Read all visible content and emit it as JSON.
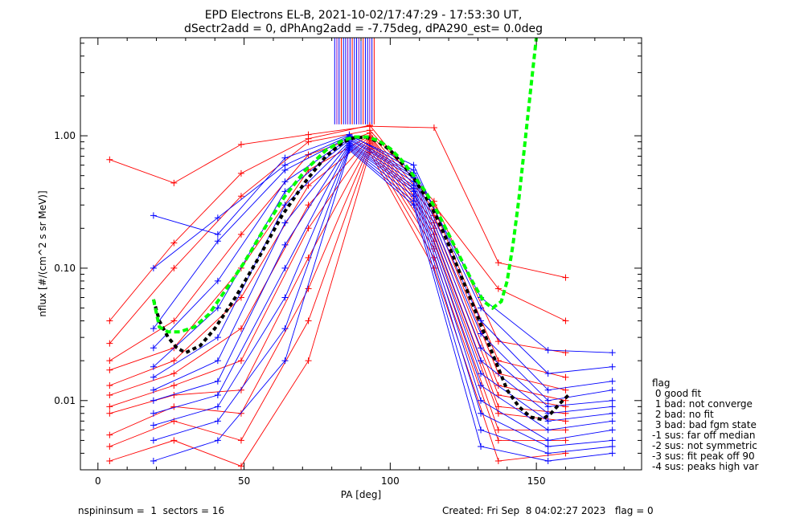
{
  "figure": {
    "title_line1": "EPD Electrons EL-B, 2021-10-02/17:47:29 - 17:53:30 UT,",
    "title_line2": "dSectr2add = 0, dPhAng2add = -7.75deg, dPA290_est=   0.0deg",
    "footer_left": "nspininsum =  1  sectors = 16",
    "footer_right": "Created: Fri Sep  8 04:02:27 2023   flag = 0",
    "legend": {
      "title": "flag",
      "entries": [
        " 0 good fit",
        " 1 bad: not converge",
        " 2 bad: no fit",
        " 3 bad: bad fgm state",
        "-1 sus: far off median",
        "-2 sus: not symmetric",
        "-3 sus: fit peak off 90",
        "-4 sus: peaks high var"
      ]
    }
  },
  "colors": {
    "red": "#ff0000",
    "blue": "#0000ff",
    "fit": "#00ff00",
    "median": "#000000",
    "axes": "#000000"
  },
  "chart_data": {
    "type": "line",
    "xlabel": "PA [deg]",
    "ylabel": "nflux [#/(cm^2 s sr MeV)]",
    "xlim": [
      -6,
      186
    ],
    "ylim": [
      0.003,
      5.5
    ],
    "yscale": "log",
    "xticks": [
      0,
      50,
      100,
      150
    ],
    "xtick_labels": [
      "0",
      "50",
      "100",
      "150"
    ],
    "yticks": [
      0.01,
      0.1,
      1.0
    ],
    "ytick_labels": [
      "0.01",
      "0.10",
      "1.00"
    ],
    "grid": false,
    "series": [
      {
        "color": "red",
        "x": [
          4,
          26,
          49,
          72,
          93,
          115,
          137,
          160
        ],
        "y": [
          0.66,
          0.44,
          0.86,
          1.02,
          1.18,
          1.15,
          0.11,
          0.085
        ]
      },
      {
        "color": "red",
        "x": [
          4,
          26,
          49,
          72,
          93,
          115,
          137,
          160
        ],
        "y": [
          0.04,
          0.155,
          0.52,
          0.95,
          1.2,
          0.3,
          0.07,
          0.04
        ]
      },
      {
        "color": "red",
        "x": [
          4,
          26,
          49,
          72,
          93,
          115,
          137,
          160
        ],
        "y": [
          0.027,
          0.1,
          0.35,
          0.9,
          1.1,
          0.32,
          0.028,
          0.023
        ]
      },
      {
        "color": "red",
        "x": [
          4,
          26,
          49,
          72,
          93,
          115,
          137,
          160
        ],
        "y": [
          0.02,
          0.04,
          0.18,
          0.72,
          1.05,
          0.28,
          0.02,
          0.015
        ]
      },
      {
        "color": "red",
        "x": [
          4,
          26,
          49,
          72,
          93,
          115,
          137,
          160
        ],
        "y": [
          0.017,
          0.025,
          0.1,
          0.55,
          1.0,
          0.25,
          0.016,
          0.012
        ]
      },
      {
        "color": "red",
        "x": [
          4,
          26,
          49,
          72,
          93,
          115,
          137,
          160
        ],
        "y": [
          0.013,
          0.02,
          0.06,
          0.42,
          0.98,
          0.22,
          0.013,
          0.01
        ]
      },
      {
        "color": "red",
        "x": [
          4,
          26,
          49,
          72,
          93,
          115,
          137,
          160
        ],
        "y": [
          0.011,
          0.016,
          0.035,
          0.3,
          0.95,
          0.2,
          0.011,
          0.009
        ]
      },
      {
        "color": "red",
        "x": [
          4,
          26,
          49,
          72,
          93,
          115,
          137,
          160
        ],
        "y": [
          0.009,
          0.013,
          0.02,
          0.2,
          0.92,
          0.18,
          0.009,
          0.008
        ]
      },
      {
        "color": "red",
        "x": [
          4,
          26,
          49,
          72,
          93,
          115,
          137,
          160
        ],
        "y": [
          0.008,
          0.011,
          0.012,
          0.12,
          0.88,
          0.16,
          0.008,
          0.007
        ]
      },
      {
        "color": "red",
        "x": [
          4,
          26,
          49,
          72,
          93,
          115,
          137,
          160
        ],
        "y": [
          0.0055,
          0.009,
          0.008,
          0.07,
          0.85,
          0.14,
          0.006,
          0.006
        ]
      },
      {
        "color": "red",
        "x": [
          4,
          26,
          49,
          72,
          93,
          115,
          137,
          160
        ],
        "y": [
          0.0045,
          0.007,
          0.005,
          0.04,
          0.8,
          0.12,
          0.005,
          0.005
        ]
      },
      {
        "color": "red",
        "x": [
          4,
          26,
          49,
          72,
          93,
          115,
          137,
          160
        ],
        "y": [
          0.0035,
          0.005,
          0.0032,
          0.02,
          0.75,
          0.1,
          0.0035,
          0.004
        ]
      },
      {
        "color": "blue",
        "x": [
          19,
          41,
          64,
          86,
          108,
          131,
          154,
          176
        ],
        "y": [
          0.25,
          0.18,
          0.68,
          1.02,
          0.55,
          0.06,
          0.024,
          0.023
        ]
      },
      {
        "color": "blue",
        "x": [
          19,
          41,
          64,
          86,
          108,
          131,
          154,
          176
        ],
        "y": [
          0.1,
          0.24,
          0.6,
          1.0,
          0.6,
          0.05,
          0.016,
          0.018
        ]
      },
      {
        "color": "blue",
        "x": [
          19,
          41,
          64,
          86,
          108,
          131,
          154,
          176
        ],
        "y": [
          0.035,
          0.16,
          0.55,
          0.98,
          0.52,
          0.04,
          0.012,
          0.014
        ]
      },
      {
        "color": "blue",
        "x": [
          19,
          41,
          64,
          86,
          108,
          131,
          154,
          176
        ],
        "y": [
          0.025,
          0.08,
          0.45,
          0.95,
          0.5,
          0.032,
          0.01,
          0.012
        ]
      },
      {
        "color": "blue",
        "x": [
          19,
          41,
          64,
          86,
          108,
          131,
          154,
          176
        ],
        "y": [
          0.018,
          0.05,
          0.38,
          0.93,
          0.48,
          0.025,
          0.009,
          0.01
        ]
      },
      {
        "color": "blue",
        "x": [
          19,
          41,
          64,
          86,
          108,
          131,
          154,
          176
        ],
        "y": [
          0.015,
          0.03,
          0.3,
          0.9,
          0.45,
          0.02,
          0.008,
          0.009
        ]
      },
      {
        "color": "blue",
        "x": [
          19,
          41,
          64,
          86,
          108,
          131,
          154,
          176
        ],
        "y": [
          0.012,
          0.02,
          0.22,
          0.88,
          0.42,
          0.016,
          0.007,
          0.008
        ]
      },
      {
        "color": "blue",
        "x": [
          19,
          41,
          64,
          86,
          108,
          131,
          154,
          176
        ],
        "y": [
          0.01,
          0.014,
          0.15,
          0.86,
          0.4,
          0.013,
          0.006,
          0.007
        ]
      },
      {
        "color": "blue",
        "x": [
          19,
          41,
          64,
          86,
          108,
          131,
          154,
          176
        ],
        "y": [
          0.008,
          0.011,
          0.1,
          0.84,
          0.38,
          0.01,
          0.005,
          0.006
        ]
      },
      {
        "color": "blue",
        "x": [
          19,
          41,
          64,
          86,
          108,
          131,
          154,
          176
        ],
        "y": [
          0.0065,
          0.009,
          0.06,
          0.82,
          0.35,
          0.008,
          0.0045,
          0.005
        ]
      },
      {
        "color": "blue",
        "x": [
          19,
          41,
          64,
          86,
          108,
          131,
          154,
          176
        ],
        "y": [
          0.005,
          0.007,
          0.035,
          0.8,
          0.32,
          0.006,
          0.004,
          0.0045
        ]
      },
      {
        "color": "blue",
        "x": [
          19,
          41,
          64,
          86,
          108,
          131,
          154,
          176
        ],
        "y": [
          0.0035,
          0.005,
          0.02,
          0.78,
          0.3,
          0.0045,
          0.0035,
          0.004
        ]
      }
    ],
    "fit_curve": {
      "color": "fit",
      "x": [
        19,
        21,
        24,
        28,
        33,
        38,
        43,
        50,
        57,
        64,
        71,
        78,
        84,
        88,
        92,
        96,
        100,
        104,
        108,
        112,
        116,
        120,
        124,
        128,
        132,
        135,
        138,
        140,
        142,
        144,
        146,
        148,
        150
      ],
      "y": [
        0.058,
        0.036,
        0.033,
        0.033,
        0.036,
        0.045,
        0.065,
        0.11,
        0.2,
        0.35,
        0.55,
        0.78,
        0.93,
        0.98,
        0.98,
        0.92,
        0.8,
        0.65,
        0.5,
        0.38,
        0.27,
        0.18,
        0.12,
        0.08,
        0.056,
        0.05,
        0.056,
        0.08,
        0.15,
        0.33,
        0.85,
        2.2,
        5.5
      ]
    },
    "median_curve": {
      "color": "median",
      "x": [
        19,
        21,
        24,
        27,
        30,
        35,
        40,
        47,
        55,
        63,
        71,
        78,
        84,
        88,
        92,
        96,
        100,
        104,
        108,
        112,
        116,
        120,
        124,
        128,
        132,
        136,
        140,
        144,
        148,
        152,
        155,
        158,
        161
      ],
      "y": [
        0.058,
        0.04,
        0.03,
        0.025,
        0.023,
        0.026,
        0.035,
        0.06,
        0.12,
        0.25,
        0.45,
        0.7,
        0.9,
        0.97,
        0.97,
        0.9,
        0.78,
        0.62,
        0.48,
        0.35,
        0.24,
        0.15,
        0.09,
        0.055,
        0.033,
        0.02,
        0.012,
        0.009,
        0.0075,
        0.0072,
        0.008,
        0.0095,
        0.011
      ]
    },
    "vertical_lines": {
      "x_start": 81,
      "x_end": 95,
      "x_step": 0.75,
      "y_bottom": 1.22,
      "y_top": 5.5,
      "colors": [
        "blue",
        "purple",
        "blue",
        "red",
        "blue"
      ]
    }
  }
}
